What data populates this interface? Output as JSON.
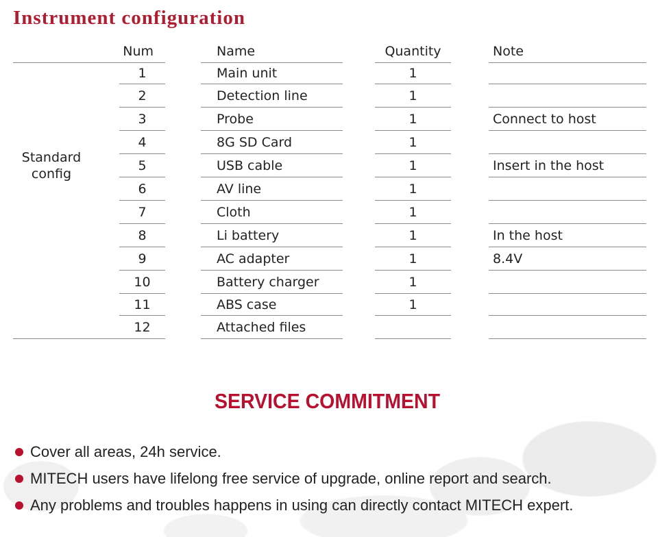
{
  "title": "Instrument configuration",
  "table": {
    "headers": {
      "num": "Num",
      "name": "Name",
      "quantity": "Quantity",
      "note": "Note"
    },
    "group_label": "Standard config",
    "rows": [
      {
        "num": "1",
        "name": "Main unit",
        "quantity": "1",
        "note": ""
      },
      {
        "num": "2",
        "name": "Detection line",
        "quantity": "1",
        "note": ""
      },
      {
        "num": "3",
        "name": "Probe",
        "quantity": "1",
        "note": "Connect to host"
      },
      {
        "num": "4",
        "name": "8G SD Card",
        "quantity": "1",
        "note": ""
      },
      {
        "num": "5",
        "name": "USB cable",
        "quantity": "1",
        "note": "Insert in the host"
      },
      {
        "num": "6",
        "name": "AV line",
        "quantity": "1",
        "note": ""
      },
      {
        "num": "7",
        "name": "Cloth",
        "quantity": "1",
        "note": ""
      },
      {
        "num": "8",
        "name": "Li battery",
        "quantity": "1",
        "note": "In the host"
      },
      {
        "num": "9",
        "name": "AC adapter",
        "quantity": "1",
        "note": "8.4V"
      },
      {
        "num": "10",
        "name": "Battery charger",
        "quantity": "1",
        "note": ""
      },
      {
        "num": "11",
        "name": "ABS case",
        "quantity": "1",
        "note": ""
      },
      {
        "num": "12",
        "name": "Attached files",
        "quantity": "",
        "note": ""
      }
    ]
  },
  "service": {
    "title": "SERVICE COMMITMENT",
    "items": [
      "Cover all areas, 24h service.",
      "MITECH users have lifelong free service of upgrade, online report and search.",
      "Any problems and troubles happens in using can directly contact MITECH expert."
    ]
  },
  "colors": {
    "accent": "#b8102e",
    "title": "#b01c30"
  }
}
